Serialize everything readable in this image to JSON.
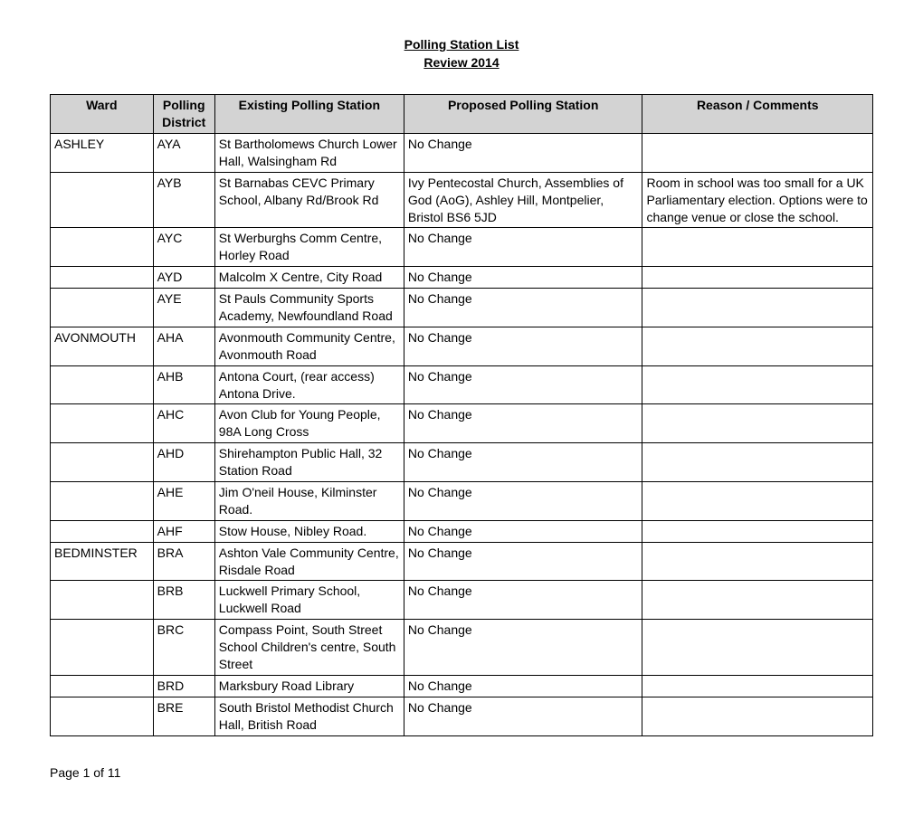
{
  "title_line1": "Polling Station List",
  "title_line2": "Review 2014",
  "columns": {
    "ward": "Ward",
    "district": "Polling District",
    "existing": "Existing Polling Station",
    "proposed": "Proposed Polling Station",
    "reason": "Reason / Comments"
  },
  "rows": [
    {
      "ward": "ASHLEY",
      "district": "AYA",
      "existing": "St Bartholomews Church Lower Hall, Walsingham Rd",
      "proposed": "No Change",
      "reason": ""
    },
    {
      "ward": "",
      "district": "AYB",
      "existing": "St Barnabas CEVC Primary School, Albany Rd/Brook Rd",
      "proposed": "Ivy Pentecostal Church, Assemblies of God (AoG), Ashley Hill, Montpelier, Bristol BS6 5JD",
      "reason": "Room in school was too small for a UK Parliamentary election. Options were to change venue or close the school."
    },
    {
      "ward": "",
      "district": "AYC",
      "existing": "St Werburghs Comm Centre, Horley Road",
      "proposed": "No Change",
      "reason": ""
    },
    {
      "ward": "",
      "district": "AYD",
      "existing": "Malcolm X Centre, City Road",
      "proposed": "No Change",
      "reason": ""
    },
    {
      "ward": "",
      "district": "AYE",
      "existing": "St Pauls Community Sports Academy, Newfoundland Road",
      "proposed": "No Change",
      "reason": ""
    },
    {
      "ward": "AVONMOUTH",
      "district": "AHA",
      "existing": "Avonmouth Community Centre, Avonmouth Road",
      "proposed": "No Change",
      "reason": ""
    },
    {
      "ward": "",
      "district": "AHB",
      "existing": "Antona Court, (rear access) Antona Drive.",
      "proposed": "No Change",
      "reason": ""
    },
    {
      "ward": "",
      "district": "AHC",
      "existing": "Avon Club for Young People, 98A Long Cross",
      "proposed": "No Change",
      "reason": ""
    },
    {
      "ward": "",
      "district": "AHD",
      "existing": "Shirehampton Public Hall, 32 Station Road",
      "proposed": "No Change",
      "reason": ""
    },
    {
      "ward": "",
      "district": "AHE",
      "existing": "Jim O'neil House, Kilminster Road.",
      "proposed": "No Change",
      "reason": ""
    },
    {
      "ward": "",
      "district": "AHF",
      "existing": "Stow House, Nibley Road.",
      "proposed": "No Change",
      "reason": ""
    },
    {
      "ward": "BEDMINSTER",
      "district": "BRA",
      "existing": "Ashton Vale Community Centre, Risdale Road",
      "proposed": "No Change",
      "reason": ""
    },
    {
      "ward": "",
      "district": "BRB",
      "existing": "Luckwell Primary School, Luckwell Road",
      "proposed": "No Change",
      "reason": ""
    },
    {
      "ward": "",
      "district": "BRC",
      "existing": "Compass Point, South Street School Children's centre, South Street",
      "proposed": "No Change",
      "reason": ""
    },
    {
      "ward": "",
      "district": "BRD",
      "existing": "Marksbury Road Library",
      "proposed": "No Change",
      "reason": ""
    },
    {
      "ward": "",
      "district": "BRE",
      "existing": "South Bristol Methodist Church Hall, British Road",
      "proposed": "No Change",
      "reason": ""
    }
  ],
  "footer": "Page 1 of 11"
}
